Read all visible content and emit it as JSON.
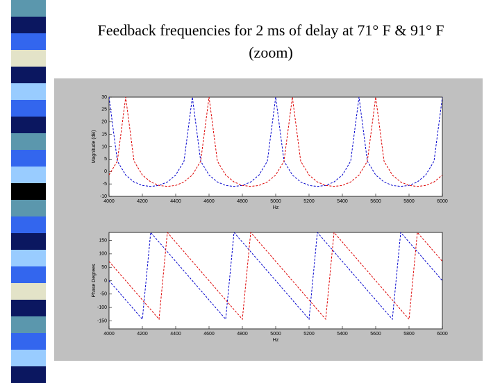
{
  "title_lines": [
    "Feedback frequencies for 2 ms of delay at 71° F & 91° F",
    "(zoom)"
  ],
  "chart_data": [
    {
      "type": "line",
      "xlabel": "Hz",
      "ylabel": "Magnitude (dB)",
      "x": [
        4000,
        4050,
        4100,
        4150,
        4200,
        4250,
        4300,
        4350,
        4400,
        4450,
        4500,
        4550,
        4600,
        4650,
        4700,
        4750,
        4800,
        4850,
        4900,
        4950,
        5000,
        5050,
        5100,
        5150,
        5200,
        5250,
        5300,
        5350,
        5400,
        5450,
        5500,
        5550,
        5600,
        5650,
        5700,
        5750,
        5800,
        5850,
        5900,
        5950,
        6000
      ],
      "xlim": [
        4000,
        6000
      ],
      "xticks": [
        4000,
        4200,
        4400,
        4600,
        4800,
        5000,
        5200,
        5400,
        5600,
        5800,
        6000
      ],
      "ylim": [
        -10,
        30
      ],
      "yticks": [
        30,
        25,
        20,
        15,
        10,
        5,
        0,
        -5,
        -10
      ],
      "series": [
        {
          "name": "71° F",
          "color": "#0000cc",
          "values": [
            30,
            4.2,
            -1.4,
            -4.2,
            -5.6,
            -6.0,
            -5.6,
            -4.2,
            -1.4,
            4.2,
            30,
            4.2,
            -1.4,
            -4.2,
            -5.6,
            -6.0,
            -5.6,
            -4.2,
            -1.4,
            4.2,
            30,
            4.2,
            -1.4,
            -4.2,
            -5.6,
            -6.0,
            -5.6,
            -4.2,
            -1.4,
            4.2,
            30,
            4.2,
            -1.4,
            -4.2,
            -5.6,
            -6.0,
            -5.6,
            -4.2,
            -1.4,
            4.2,
            30
          ]
        },
        {
          "name": "91° F",
          "color": "#dd0000",
          "values": [
            -1.4,
            4.2,
            30,
            4.2,
            -1.4,
            -4.2,
            -5.6,
            -6.0,
            -5.6,
            -4.2,
            -1.4,
            4.2,
            30,
            4.2,
            -1.4,
            -4.2,
            -5.6,
            -6.0,
            -5.6,
            -4.2,
            -1.4,
            4.2,
            30,
            4.2,
            -1.4,
            -4.2,
            -5.6,
            -6.0,
            -5.6,
            -4.2,
            -1.4,
            4.2,
            30,
            4.2,
            -1.4,
            -4.2,
            -5.6,
            -6.0,
            -5.6,
            -4.2,
            -1.4
          ]
        }
      ]
    },
    {
      "type": "line",
      "xlabel": "Hz",
      "ylabel": "Phase Degrees",
      "x": [
        4000,
        4050,
        4100,
        4150,
        4200,
        4250,
        4300,
        4350,
        4400,
        4450,
        4500,
        4550,
        4600,
        4650,
        4700,
        4750,
        4800,
        4850,
        4900,
        4950,
        5000,
        5050,
        5100,
        5150,
        5200,
        5250,
        5300,
        5350,
        5400,
        5450,
        5500,
        5550,
        5600,
        5650,
        5700,
        5750,
        5800,
        5850,
        5900,
        5950,
        6000
      ],
      "xlim": [
        4000,
        6000
      ],
      "xticks": [
        4000,
        4200,
        4400,
        4600,
        4800,
        5000,
        5200,
        5400,
        5600,
        5800,
        6000
      ],
      "ylim": [
        -180,
        180
      ],
      "yticks": [
        150,
        100,
        50,
        0,
        -50,
        -100,
        -150
      ],
      "series": [
        {
          "name": "71° F",
          "color": "#0000cc",
          "values": [
            0,
            -36,
            -72,
            -108,
            -144,
            180,
            144,
            108,
            72,
            36,
            0,
            -36,
            -72,
            -108,
            -144,
            180,
            144,
            108,
            72,
            36,
            0,
            -36,
            -72,
            -108,
            -144,
            180,
            144,
            108,
            72,
            36,
            0,
            -36,
            -72,
            -108,
            -144,
            180,
            144,
            108,
            72,
            36,
            0
          ]
        },
        {
          "name": "91° F",
          "color": "#dd0000",
          "values": [
            72,
            36,
            0,
            -36,
            -72,
            -108,
            -144,
            180,
            144,
            108,
            72,
            36,
            0,
            -36,
            -72,
            -108,
            -144,
            180,
            144,
            108,
            72,
            36,
            0,
            -36,
            -72,
            -108,
            -144,
            180,
            144,
            108,
            72,
            36,
            0,
            -36,
            -72,
            -108,
            -144,
            180,
            144,
            108,
            72
          ]
        }
      ]
    }
  ]
}
